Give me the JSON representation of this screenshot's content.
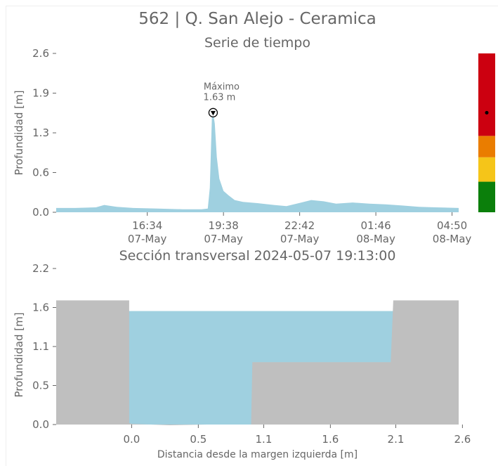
{
  "figure": {
    "title": "562 | Q. San Alejo - Ceramica"
  },
  "colors": {
    "water": "#9fd0e0",
    "ground": "#bfbfbf",
    "text": "#666666",
    "level_red": "#cc0010",
    "level_orange": "#ea7d00",
    "level_yellow": "#f5c519",
    "level_green": "#0b7f0b"
  },
  "chart_data": [
    {
      "type": "area",
      "title": "Serie de tiempo",
      "ylabel": "Profundidad [m]",
      "xlabel": "",
      "ylim": [
        0,
        2.6
      ],
      "yticks": [
        "0.0",
        "0.6",
        "1.3",
        "1.9",
        "2.6"
      ],
      "xlim": [
        "2024-05-07 12:54",
        "2024-05-08 05:06"
      ],
      "xticks": [
        {
          "time": "16:34",
          "date": "07-May",
          "at": "2024-05-07 16:34"
        },
        {
          "time": "19:38",
          "date": "07-May",
          "at": "2024-05-07 19:38"
        },
        {
          "time": "22:42",
          "date": "07-May",
          "at": "2024-05-07 22:42"
        },
        {
          "time": "01:46",
          "date": "08-May",
          "at": "2024-05-08 01:46"
        },
        {
          "time": "04:50",
          "date": "08-May",
          "at": "2024-05-08 04:50"
        }
      ],
      "series": [
        {
          "x": [
            "2024-05-07 12:54",
            "2024-05-07 13:40",
            "2024-05-07 14:30",
            "2024-05-07 14:50",
            "2024-05-07 15:20",
            "2024-05-07 16:00",
            "2024-05-07 17:00",
            "2024-05-07 18:00",
            "2024-05-07 18:45",
            "2024-05-07 19:00",
            "2024-05-07 19:05",
            "2024-05-07 19:08",
            "2024-05-07 19:10",
            "2024-05-07 19:13",
            "2024-05-07 19:17",
            "2024-05-07 19:22",
            "2024-05-07 19:28",
            "2024-05-07 19:38",
            "2024-05-07 19:50",
            "2024-05-07 20:05",
            "2024-05-07 20:25",
            "2024-05-07 21:00",
            "2024-05-07 21:40",
            "2024-05-07 22:10",
            "2024-05-07 22:40",
            "2024-05-07 23:10",
            "2024-05-07 23:40",
            "2024-05-08 00:10",
            "2024-05-08 00:50",
            "2024-05-08 01:30",
            "2024-05-08 02:10",
            "2024-05-08 02:50",
            "2024-05-08 03:30",
            "2024-05-08 04:10",
            "2024-05-08 05:06"
          ],
          "y": [
            0.07,
            0.07,
            0.08,
            0.12,
            0.09,
            0.07,
            0.06,
            0.05,
            0.05,
            0.06,
            0.4,
            1.1,
            1.55,
            1.63,
            1.45,
            0.9,
            0.55,
            0.35,
            0.28,
            0.2,
            0.17,
            0.15,
            0.12,
            0.1,
            0.15,
            0.2,
            0.18,
            0.14,
            0.16,
            0.14,
            0.13,
            0.11,
            0.09,
            0.08,
            0.07
          ]
        }
      ],
      "annotations": {
        "max_label": "Máximo",
        "max_value_text": "1.63 m",
        "max_time": "2024-05-07 19:13",
        "max_value": 1.63
      },
      "level_bar": {
        "segments": [
          {
            "name": "green",
            "from": 0.0,
            "to": 0.5
          },
          {
            "name": "yellow",
            "from": 0.5,
            "to": 0.9
          },
          {
            "name": "orange",
            "from": 0.9,
            "to": 1.25
          },
          {
            "name": "red",
            "from": 1.25,
            "to": 2.6
          }
        ],
        "marker": 1.63
      }
    },
    {
      "type": "area",
      "title": "Sección transversal 2024-05-07 19:13:00",
      "xlabel": "Distancia desde la margen izquierda [m]",
      "ylabel": "Profundidad [m]",
      "xlim": [
        -0.6,
        2.6
      ],
      "ylim": [
        0,
        2.2
      ],
      "xticks": [
        "0.0",
        "0.5",
        "1.1",
        "1.6",
        "2.1",
        "2.6"
      ],
      "xtick_values": [
        0.0,
        0.53,
        1.05,
        1.58,
        2.1,
        2.63
      ],
      "yticks": [
        "0.0",
        "0.5",
        "1.1",
        "1.6",
        "2.2"
      ],
      "ytick_values": [
        0.0,
        0.55,
        1.1,
        1.65,
        2.2
      ],
      "ground_profile": {
        "x": [
          -0.6,
          -0.02,
          -0.02,
          0.0,
          0.3,
          0.6,
          0.95,
          0.96,
          2.06,
          2.08,
          2.6
        ],
        "y": [
          1.75,
          1.75,
          0.02,
          0.01,
          -0.01,
          0.0,
          0.0,
          0.88,
          0.88,
          1.75,
          1.75
        ]
      },
      "water_level": 1.6
    }
  ]
}
